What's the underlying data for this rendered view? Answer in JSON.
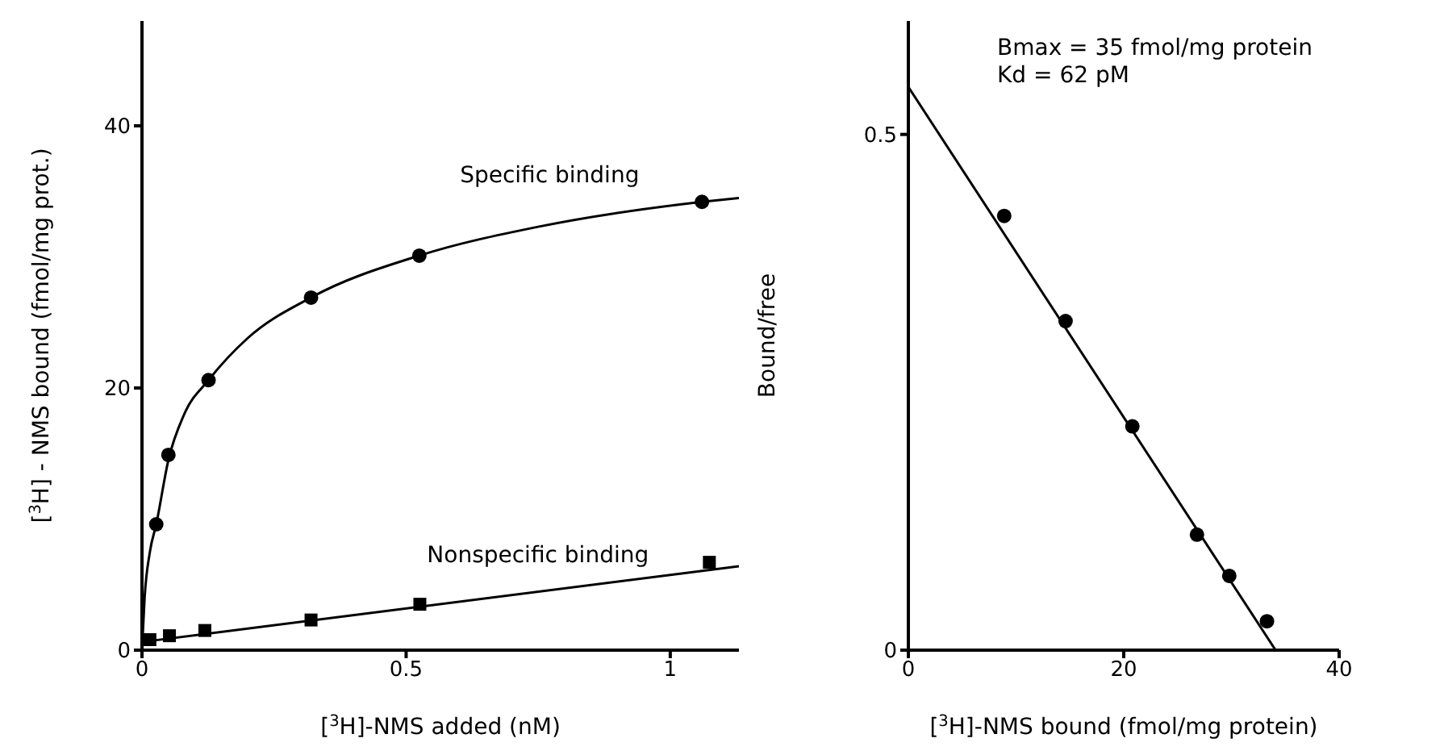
{
  "chart_data": [
    {
      "type": "scatter",
      "xlabel": "[$^{3}$H]-NMS added (nM)",
      "ylabel": "[$^{3}$H] - NMS bound  (fmol/mg prot.)",
      "xlim": [
        0,
        1.13
      ],
      "ylim": [
        0,
        48
      ],
      "xticks": [
        0,
        0.5,
        1
      ],
      "yticks": [
        0,
        20,
        40
      ],
      "grid": false,
      "legend": false,
      "series": [
        {
          "name": "Specific binding",
          "color": "#000000",
          "marker": "circle",
          "x": [
            0.027,
            0.05,
            0.126,
            0.32,
            0.525,
            1.06
          ],
          "values": [
            9.6,
            14.9,
            20.6,
            26.9,
            30.1,
            34.2
          ]
        },
        {
          "type": "line",
          "color": "#000000",
          "marker": "none",
          "x": [
            0,
            0.005,
            0.015,
            0.027,
            0.05,
            0.08,
            0.126,
            0.2,
            0.32,
            0.525,
            0.75,
            1.06,
            1.13
          ],
          "values": [
            0,
            4,
            7.5,
            9.6,
            14.5,
            18,
            20.6,
            23.8,
            26.9,
            30.1,
            32.3,
            34.2,
            34.5
          ]
        },
        {
          "name": "Nonspecific binding",
          "color": "#000000",
          "marker": "square",
          "x": [
            0.015,
            0.052,
            0.119,
            0.32,
            0.526,
            1.074
          ],
          "values": [
            0.8,
            1.1,
            1.5,
            2.3,
            3.5,
            6.7
          ]
        },
        {
          "type": "line",
          "color": "#000000",
          "marker": "none",
          "x": [
            0.015,
            1.13
          ],
          "values": [
            0.7,
            6.4
          ]
        }
      ]
    },
    {
      "type": "scatter",
      "xlabel": "[$^{3}$H]-NMS bound (fmol/mg protein)",
      "ylabel": "Bound/free",
      "xlim": [
        0,
        40
      ],
      "ylim": [
        0,
        0.61
      ],
      "xticks": [
        0,
        20,
        40
      ],
      "yticks": [
        0,
        0.5
      ],
      "grid": false,
      "legend": false,
      "annotations": [
        "Bmax = 35 fmol/mg protein",
        "Kd = 62 pM"
      ],
      "series": [
        {
          "color": "#000000",
          "marker": "circle",
          "x": [
            8.9,
            14.6,
            20.8,
            26.8,
            29.8,
            33.3
          ],
          "values": [
            0.421,
            0.319,
            0.217,
            0.112,
            0.072,
            0.028
          ]
        },
        {
          "type": "line",
          "color": "#000000",
          "marker": "none",
          "x": [
            0,
            34.1
          ],
          "values": [
            0.546,
            0
          ]
        }
      ]
    }
  ]
}
